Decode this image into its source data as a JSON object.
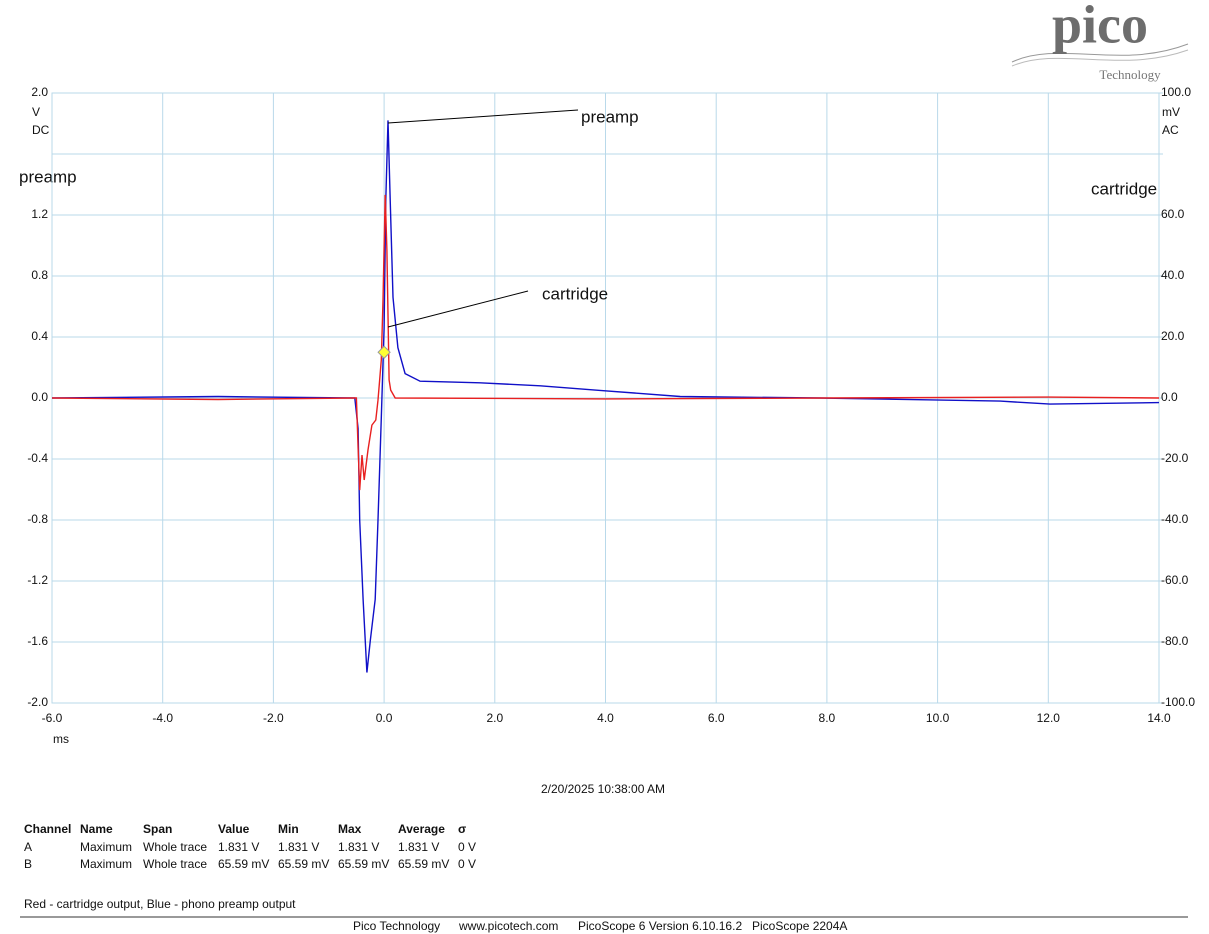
{
  "logo": {
    "name": "pico",
    "sub": "Technology"
  },
  "chart_data": {
    "type": "line",
    "xlim": [
      -6,
      14
    ],
    "xticks": [
      {
        "value": -6,
        "label": "-6.0"
      },
      {
        "value": -4,
        "label": "-4.0"
      },
      {
        "value": -2,
        "label": "-2.0"
      },
      {
        "value": 0,
        "label": "0.0"
      },
      {
        "value": 2,
        "label": "2.0"
      },
      {
        "value": 4,
        "label": "4.0"
      },
      {
        "value": 6,
        "label": "6.0"
      },
      {
        "value": 8,
        "label": "8.0"
      },
      {
        "value": 10,
        "label": "10.0"
      },
      {
        "value": 12,
        "label": "12.0"
      },
      {
        "value": 14,
        "label": "14.0"
      }
    ],
    "x_unit": "ms",
    "ylim": [
      -2,
      2
    ],
    "yticks": [
      {
        "value": 2,
        "label": "2.0"
      },
      {
        "value": 1.6,
        "label": null
      },
      1.2,
      0.8,
      0.4,
      {
        "value": 0,
        "label": "0.0"
      },
      -0.4,
      -0.8,
      -1.2,
      -1.6,
      {
        "value": -2,
        "label": "-2.0"
      }
    ],
    "y_unit": "V",
    "y_coupling": "DC",
    "y2lim": [
      -100,
      100
    ],
    "y2ticks": [
      {
        "value": 100,
        "label": "100.0"
      },
      {
        "value": 80,
        "label": null
      },
      {
        "value": 60,
        "label": "60.0"
      },
      {
        "value": 40,
        "label": "40.0"
      },
      {
        "value": 20,
        "label": "20.0"
      },
      {
        "value": 0,
        "label": "0.0"
      },
      {
        "value": -20,
        "label": "-20.0"
      },
      {
        "value": -40,
        "label": "-40.0"
      },
      {
        "value": -60,
        "label": "-60.0"
      },
      {
        "value": -80,
        "label": "-80.0"
      },
      {
        "value": -100,
        "label": "-100.0"
      }
    ],
    "y2_unit": "mV",
    "y2_coupling": "AC",
    "grid": true,
    "series": [
      {
        "name": "preamp",
        "color": "#1010c8",
        "x": [
          -6,
          -3,
          -0.55,
          -0.53,
          -0.47,
          -0.44,
          -0.38,
          -0.31,
          -0.25,
          -0.16,
          -0.11,
          -0.05,
          0,
          0.03,
          0.07,
          0.11,
          0.16,
          0.25,
          0.38,
          0.65,
          1.73,
          2.82,
          3.9,
          5.35,
          7.87,
          11.13,
          12.03,
          14
        ],
        "values": [
          0,
          0.01,
          0,
          0,
          -0.2,
          -0.8,
          -1.32,
          -1.8,
          -1.59,
          -1.32,
          -0.8,
          -0.13,
          0.46,
          1.3,
          1.82,
          1.3,
          0.66,
          0.33,
          0.16,
          0.11,
          0.1,
          0.08,
          0.05,
          0.01,
          0,
          -0.02,
          -0.04,
          -0.03
        ]
      },
      {
        "name": "cartridge",
        "color": "#e82020",
        "axis": "y2",
        "x": [
          -6,
          -3,
          -0.55,
          -0.5,
          -0.47,
          -0.44,
          -0.4,
          -0.36,
          -0.29,
          -0.22,
          -0.15,
          -0.11,
          -0.05,
          -0.02,
          0.02,
          0.05,
          0.09,
          0.12,
          0.2,
          4,
          8,
          12,
          14
        ],
        "values": [
          0,
          -0.5,
          0,
          0,
          -16.4,
          -30.2,
          -18.7,
          -26.9,
          -17,
          -8.9,
          -7.2,
          -0.7,
          12.5,
          32,
          66.6,
          48.5,
          5.9,
          2.6,
          0,
          -0.3,
          0,
          0.3,
          0
        ]
      }
    ],
    "trigger": {
      "x": 0,
      "y": 0.3
    },
    "annotations": [
      "preamp",
      "cartridge"
    ]
  },
  "timestamp": "2/20/2025 10:38:00 AM",
  "table": {
    "header": [
      "Channel",
      "Name",
      "Span",
      "Value",
      "Min",
      "Max",
      "Average",
      "σ"
    ],
    "rows": [
      [
        "A",
        "Maximum",
        "Whole trace",
        "1.831 V",
        "1.831 V",
        "1.831 V",
        "1.831 V",
        "0 V"
      ],
      [
        "B",
        "Maximum",
        "Whole trace",
        "65.59 mV",
        "65.59 mV",
        "65.59 mV",
        "65.59 mV",
        "0 V"
      ]
    ]
  },
  "caption": "Red - cartridge output,  Blue - phono preamp output",
  "footer": [
    "Pico Technology",
    "www.picotech.com",
    "PicoScope 6 Version 6.10.16.2",
    "PicoScope 2204A"
  ]
}
